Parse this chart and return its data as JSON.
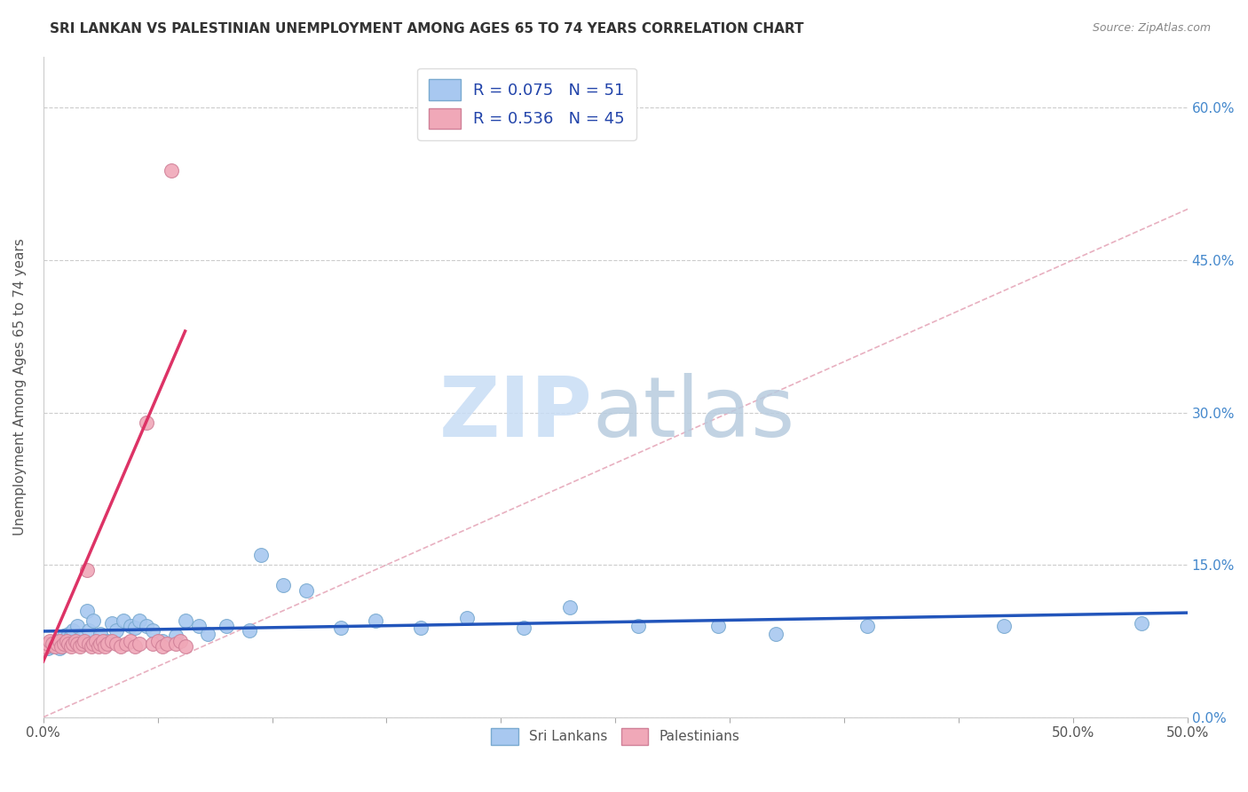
{
  "title": "SRI LANKAN VS PALESTINIAN UNEMPLOYMENT AMONG AGES 65 TO 74 YEARS CORRELATION CHART",
  "source": "Source: ZipAtlas.com",
  "ylabel": "Unemployment Among Ages 65 to 74 years",
  "xlim": [
    0.0,
    0.5
  ],
  "ylim": [
    0.0,
    0.65
  ],
  "xticks": [
    0.0,
    0.05,
    0.1,
    0.15,
    0.2,
    0.25,
    0.3,
    0.35,
    0.4,
    0.45,
    0.5
  ],
  "xtick_labels_show": {
    "0.0": "0.0%",
    "0.5": "50.0%"
  },
  "yticks_right": [
    0.0,
    0.15,
    0.3,
    0.45,
    0.6
  ],
  "ytick_labels_right": [
    "0.0%",
    "15.0%",
    "30.0%",
    "45.0%",
    "60.0%"
  ],
  "sri_lankan_color": "#a8c8f0",
  "sri_lankan_edge": "#7aaad0",
  "palestinian_color": "#f0a8b8",
  "palestinian_edge": "#d08098",
  "sri_lankan_R": 0.075,
  "sri_lankan_N": 51,
  "palestinian_R": 0.536,
  "palestinian_N": 45,
  "sri_lankan_trend_color": "#2255bb",
  "palestinian_trend_color": "#dd3366",
  "diagonal_color": "#e8b0c0",
  "sri_lankans_x": [
    0.0,
    0.002,
    0.003,
    0.004,
    0.005,
    0.006,
    0.007,
    0.008,
    0.009,
    0.01,
    0.011,
    0.012,
    0.013,
    0.015,
    0.016,
    0.018,
    0.019,
    0.02,
    0.022,
    0.025,
    0.028,
    0.03,
    0.032,
    0.035,
    0.038,
    0.04,
    0.042,
    0.045,
    0.048,
    0.052,
    0.058,
    0.062,
    0.068,
    0.072,
    0.08,
    0.09,
    0.095,
    0.105,
    0.115,
    0.13,
    0.145,
    0.165,
    0.185,
    0.21,
    0.23,
    0.26,
    0.295,
    0.32,
    0.36,
    0.42,
    0.48
  ],
  "sri_lankans_y": [
    0.068,
    0.068,
    0.072,
    0.07,
    0.075,
    0.072,
    0.068,
    0.07,
    0.08,
    0.078,
    0.082,
    0.08,
    0.085,
    0.09,
    0.078,
    0.072,
    0.105,
    0.085,
    0.095,
    0.082,
    0.075,
    0.092,
    0.085,
    0.095,
    0.09,
    0.088,
    0.095,
    0.09,
    0.085,
    0.075,
    0.08,
    0.095,
    0.09,
    0.082,
    0.09,
    0.085,
    0.16,
    0.13,
    0.125,
    0.088,
    0.095,
    0.088,
    0.098,
    0.088,
    0.108,
    0.09,
    0.09,
    0.082,
    0.09,
    0.09,
    0.092
  ],
  "palestinians_x": [
    0.0,
    0.001,
    0.002,
    0.003,
    0.004,
    0.005,
    0.006,
    0.007,
    0.008,
    0.009,
    0.01,
    0.011,
    0.012,
    0.013,
    0.014,
    0.015,
    0.016,
    0.017,
    0.018,
    0.019,
    0.02,
    0.021,
    0.022,
    0.023,
    0.024,
    0.025,
    0.026,
    0.027,
    0.028,
    0.03,
    0.032,
    0.034,
    0.036,
    0.038,
    0.04,
    0.042,
    0.045,
    0.048,
    0.05,
    0.052,
    0.054,
    0.056,
    0.058,
    0.06,
    0.062
  ],
  "palestinians_y": [
    0.068,
    0.07,
    0.072,
    0.075,
    0.072,
    0.07,
    0.072,
    0.075,
    0.07,
    0.072,
    0.075,
    0.072,
    0.07,
    0.072,
    0.075,
    0.072,
    0.07,
    0.072,
    0.075,
    0.145,
    0.072,
    0.07,
    0.072,
    0.075,
    0.07,
    0.072,
    0.075,
    0.07,
    0.072,
    0.075,
    0.072,
    0.07,
    0.072,
    0.075,
    0.07,
    0.072,
    0.29,
    0.072,
    0.075,
    0.07,
    0.072,
    0.538,
    0.072,
    0.075,
    0.07
  ],
  "palestinian_trend_x_start": 0.0,
  "palestinian_trend_x_end": 0.062,
  "palestinian_trend_y_start": 0.055,
  "palestinian_trend_y_end": 0.38
}
